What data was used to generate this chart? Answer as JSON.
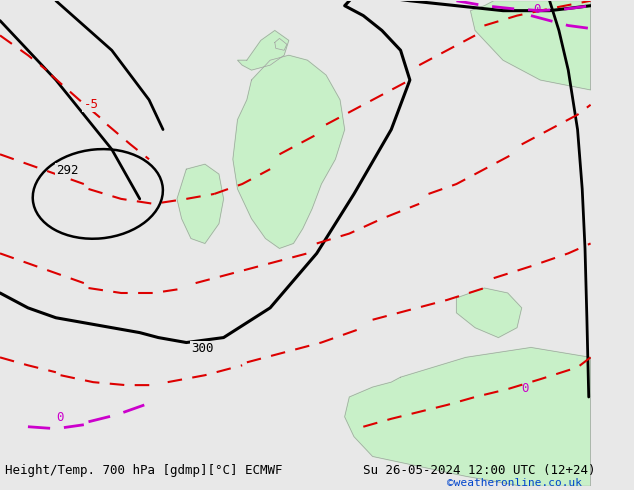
{
  "title_left": "Height/Temp. 700 hPa [gdmp][°C] ECMWF",
  "title_right": "Su 26-05-2024 12:00 UTC (12+24)",
  "watermark": "©weatheronline.co.uk",
  "bg_color": "#e8e8e8",
  "land_color": "#c8f0c8",
  "border_color": "#a0a0a0",
  "black_contour_color": "#000000",
  "red_contour_color": "#dd0000",
  "magenta_contour_color": "#cc00cc",
  "label_292": "292",
  "label_300": "300",
  "label_minus5": "-5",
  "label_0_top": "0",
  "label_0_bottom": "0",
  "label_0_right": "0",
  "font_size_labels": 9,
  "font_size_footer": 9,
  "font_size_watermark": 8
}
